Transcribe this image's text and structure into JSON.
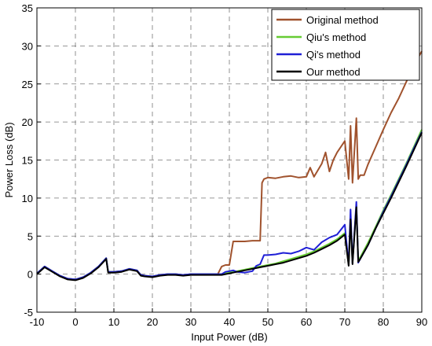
{
  "chart_data": {
    "type": "line",
    "title": "",
    "xlabel": "Input Power (dB)",
    "ylabel": "Power  Loss (dB)",
    "xlim": [
      -10,
      90
    ],
    "ylim": [
      -5,
      35
    ],
    "xticks": [
      -10,
      0,
      10,
      20,
      30,
      40,
      50,
      60,
      70,
      80,
      90
    ],
    "yticks": [
      -5,
      0,
      5,
      10,
      15,
      20,
      25,
      30,
      35
    ],
    "grid": true,
    "legend_position": "top-right",
    "series": [
      {
        "name": "Original method",
        "color": "#a0522d",
        "x": [
          -10,
          -8,
          -6,
          -4,
          -2,
          0,
          2,
          4,
          6,
          8,
          8.5,
          10,
          12,
          14,
          16,
          17,
          18,
          20,
          22,
          24,
          26,
          28,
          30,
          32,
          34,
          36,
          37,
          38,
          39,
          40,
          41,
          42,
          44,
          46,
          47.5,
          48,
          48.5,
          49,
          50,
          52,
          54,
          56,
          58,
          60,
          61,
          62,
          64,
          65,
          66,
          67,
          68,
          70,
          71,
          71.5,
          72,
          73,
          73.5,
          74,
          75,
          76,
          78,
          80,
          82,
          84,
          86,
          88,
          90
        ],
        "y": [
          0.1,
          1.0,
          0.4,
          -0.2,
          -0.6,
          -0.7,
          -0.4,
          0.2,
          1.0,
          2.1,
          0.3,
          0.3,
          0.4,
          0.7,
          0.5,
          -0.1,
          -0.2,
          -0.3,
          -0.1,
          0.0,
          0.0,
          -0.1,
          0.0,
          0.0,
          0.0,
          0.0,
          0.0,
          1.0,
          1.2,
          1.2,
          4.3,
          4.3,
          4.3,
          4.4,
          4.4,
          4.4,
          12.0,
          12.5,
          12.7,
          12.6,
          12.8,
          12.9,
          12.7,
          12.8,
          14.0,
          12.8,
          14.5,
          16.0,
          13.5,
          15.0,
          16.0,
          17.5,
          12.5,
          19.5,
          12.0,
          20.5,
          12.5,
          13.0,
          13.0,
          14.4,
          16.7,
          19.0,
          21.2,
          23.1,
          25.3,
          27.5,
          29.3
        ]
      },
      {
        "name": "Qiu's method",
        "color": "#66cc33",
        "x": [
          -10,
          -8,
          -6,
          -4,
          -2,
          0,
          2,
          4,
          6,
          8,
          8.5,
          10,
          12,
          14,
          16,
          17,
          18,
          20,
          22,
          24,
          26,
          28,
          30,
          32,
          34,
          36,
          38,
          40,
          42,
          44,
          46,
          48,
          50,
          52,
          54,
          56,
          58,
          60,
          62,
          64,
          66,
          68,
          70,
          71,
          71.5,
          72,
          73,
          73.5,
          74,
          76,
          78,
          80,
          82,
          84,
          86,
          88,
          90
        ],
        "y": [
          0.1,
          1.0,
          0.4,
          -0.2,
          -0.6,
          -0.7,
          -0.4,
          0.2,
          1.0,
          2.1,
          0.3,
          0.3,
          0.4,
          0.7,
          0.5,
          -0.1,
          -0.2,
          -0.3,
          -0.1,
          0.0,
          0.0,
          -0.1,
          0.0,
          0.0,
          0.0,
          0.0,
          0.0,
          0.2,
          0.4,
          0.6,
          0.8,
          1.0,
          1.2,
          1.4,
          1.7,
          2.0,
          2.3,
          2.6,
          3.0,
          3.5,
          4.0,
          4.6,
          5.4,
          1.3,
          7.5,
          1.5,
          9.0,
          1.8,
          2.2,
          4.1,
          6.2,
          8.4,
          10.4,
          12.5,
          14.6,
          16.8,
          19.0
        ]
      },
      {
        "name": "Qi's method",
        "color": "#1f1fd6",
        "x": [
          -10,
          -8,
          -6,
          -4,
          -2,
          0,
          2,
          4,
          6,
          8,
          8.5,
          10,
          12,
          14,
          16,
          17,
          18,
          20,
          22,
          24,
          26,
          28,
          30,
          32,
          34,
          36,
          38,
          39,
          40,
          41,
          42,
          44,
          46,
          47,
          48,
          49,
          50,
          52,
          54,
          56,
          58,
          60,
          62,
          64,
          66,
          68,
          70,
          71,
          71.5,
          72,
          73,
          73.5,
          74,
          76,
          78,
          80,
          82,
          84,
          86,
          88,
          90
        ],
        "y": [
          0.1,
          1.0,
          0.4,
          -0.2,
          -0.6,
          -0.7,
          -0.4,
          0.2,
          1.0,
          2.1,
          0.3,
          0.3,
          0.4,
          0.7,
          0.5,
          -0.1,
          -0.2,
          -0.3,
          -0.1,
          0.0,
          0.0,
          -0.1,
          0.0,
          0.0,
          0.0,
          0.0,
          0.0,
          0.3,
          0.4,
          0.5,
          0.3,
          0.2,
          0.4,
          1.1,
          1.3,
          2.5,
          2.5,
          2.6,
          2.8,
          2.7,
          3.0,
          3.5,
          3.2,
          4.2,
          4.8,
          5.2,
          6.5,
          1.2,
          8.5,
          1.4,
          9.5,
          1.5,
          2.0,
          3.8,
          6.0,
          8.2,
          10.2,
          12.3,
          14.4,
          16.6,
          18.7
        ]
      },
      {
        "name": "Our method",
        "color": "#000000",
        "x": [
          -10,
          -8,
          -6,
          -4,
          -2,
          0,
          2,
          4,
          6,
          8,
          8.5,
          10,
          12,
          14,
          16,
          17,
          18,
          20,
          22,
          24,
          26,
          28,
          30,
          32,
          34,
          36,
          38,
          40,
          42,
          44,
          46,
          48,
          50,
          52,
          54,
          56,
          58,
          60,
          62,
          64,
          66,
          68,
          70,
          71,
          71.5,
          72,
          73,
          73.5,
          74,
          76,
          78,
          80,
          82,
          84,
          86,
          88,
          90
        ],
        "y": [
          0.0,
          0.9,
          0.3,
          -0.3,
          -0.7,
          -0.8,
          -0.5,
          0.1,
          0.9,
          2.0,
          0.2,
          0.2,
          0.3,
          0.6,
          0.4,
          -0.2,
          -0.3,
          -0.4,
          -0.2,
          -0.1,
          -0.1,
          -0.2,
          -0.1,
          -0.1,
          -0.1,
          -0.1,
          -0.1,
          0.1,
          0.3,
          0.5,
          0.7,
          0.9,
          1.1,
          1.3,
          1.5,
          1.8,
          2.1,
          2.4,
          2.8,
          3.3,
          3.8,
          4.4,
          5.2,
          1.1,
          7.2,
          1.3,
          8.8,
          1.6,
          2.0,
          3.8,
          6.0,
          8.0,
          10.0,
          12.1,
          14.2,
          16.4,
          18.6
        ]
      }
    ]
  }
}
